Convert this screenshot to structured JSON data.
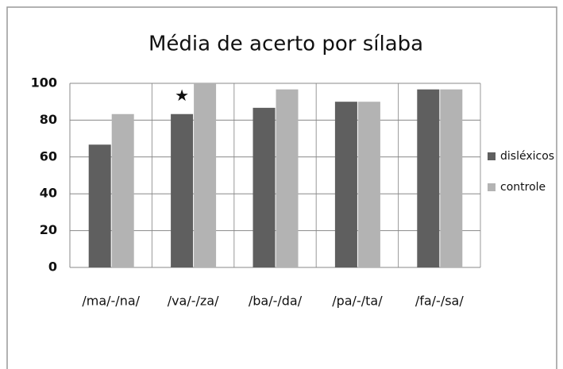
{
  "chart_data": {
    "type": "bar",
    "title": "Média de acerto por sílaba",
    "categories": [
      "/ma/-/na/",
      "/va/-/za/",
      "/ba/-/da/",
      "/pa/-/ta/",
      "/fa/-/sa/"
    ],
    "series": [
      {
        "name": "disléxicos",
        "color": "#5f5f5f",
        "values": [
          66.7,
          83.3,
          86.7,
          90,
          96.7
        ]
      },
      {
        "name": "controle",
        "color": "#b3b3b3",
        "values": [
          83.3,
          100,
          96.7,
          90,
          96.7
        ]
      }
    ],
    "annotations": [
      "★"
    ],
    "ylim": [
      0,
      100
    ],
    "yticks": [
      0,
      20,
      40,
      60,
      80,
      100
    ],
    "grid": true,
    "legend": "right"
  }
}
